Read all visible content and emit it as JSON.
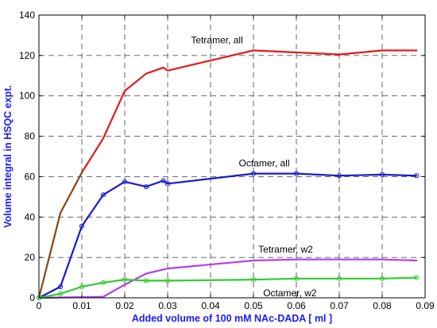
{
  "chart_data": {
    "type": "line",
    "xlabel": "Added volume of 100 mM NAc-DADA [ ml ]",
    "ylabel": "Volume integral in HSQC expt.",
    "xlim": [
      0,
      0.09
    ],
    "ylim": [
      0,
      140
    ],
    "xticks": [
      0,
      0.01,
      0.02,
      0.03,
      0.04,
      0.05,
      0.06,
      0.07,
      0.08,
      0.09
    ],
    "xtick_labels": [
      "0",
      "0.01",
      "0.02",
      "0.03",
      "0.04",
      "0.05",
      "0.06",
      "0.07",
      "0.08",
      "0.09"
    ],
    "yticks": [
      0,
      20,
      40,
      60,
      80,
      100,
      120,
      140
    ],
    "ytick_labels": [
      "0",
      "20",
      "40",
      "60",
      "80",
      "100",
      "120",
      "140"
    ],
    "grid": true,
    "colors": {
      "axis_label": "#1a1aff",
      "grid": "#555555"
    },
    "series": [
      {
        "color": "#e31a1a",
        "markers": false,
        "x": [
          0.01,
          0.015,
          0.02,
          0.025,
          0.029,
          0.03,
          0.05,
          0.06,
          0.07,
          0.08,
          0.088
        ],
        "y": [
          62,
          79,
          102.5,
          111,
          114,
          112.5,
          122.5,
          121.5,
          120.5,
          122.5,
          122.5
        ]
      },
      {
        "color": "#8b4513",
        "markers": false,
        "x": [
          0,
          0.005,
          0.01
        ],
        "y": [
          0,
          42,
          62
        ]
      },
      {
        "color": "#1a1acc",
        "markers": true,
        "x": [
          0,
          0.005,
          0.01,
          0.015,
          0.02,
          0.025,
          0.029,
          0.03,
          0.05,
          0.06,
          0.07,
          0.08,
          0.088
        ],
        "y": [
          0,
          5.5,
          35.5,
          51,
          57.5,
          55,
          58,
          56.5,
          61.5,
          61.5,
          60.5,
          61,
          60.5
        ]
      },
      {
        "color": "#b340e6",
        "markers": false,
        "x": [
          0,
          0.015,
          0.02,
          0.025,
          0.03,
          0.05,
          0.06,
          0.07,
          0.08,
          0.088
        ],
        "y": [
          0,
          0.5,
          6.5,
          12,
          14.5,
          18.5,
          19,
          19,
          19,
          18.5
        ]
      },
      {
        "color": "#33cc33",
        "markers": true,
        "x": [
          0,
          0.005,
          0.01,
          0.015,
          0.02,
          0.025,
          0.03,
          0.05,
          0.06,
          0.07,
          0.08,
          0.088
        ],
        "y": [
          0,
          2,
          5.5,
          7.5,
          9,
          8.5,
          8.5,
          9,
          9.5,
          9.5,
          9.5,
          10
        ]
      }
    ],
    "annotations": [
      {
        "text": "Tetramer, all",
        "x": 0.0415,
        "y": 126
      },
      {
        "text": "Octamer, all",
        "x": 0.0525,
        "y": 65
      },
      {
        "text": "Tetramer, w2",
        "x": 0.0575,
        "y": 22.5
      },
      {
        "text": "Octamer, w2",
        "x": 0.0585,
        "y": 0.7
      }
    ]
  }
}
